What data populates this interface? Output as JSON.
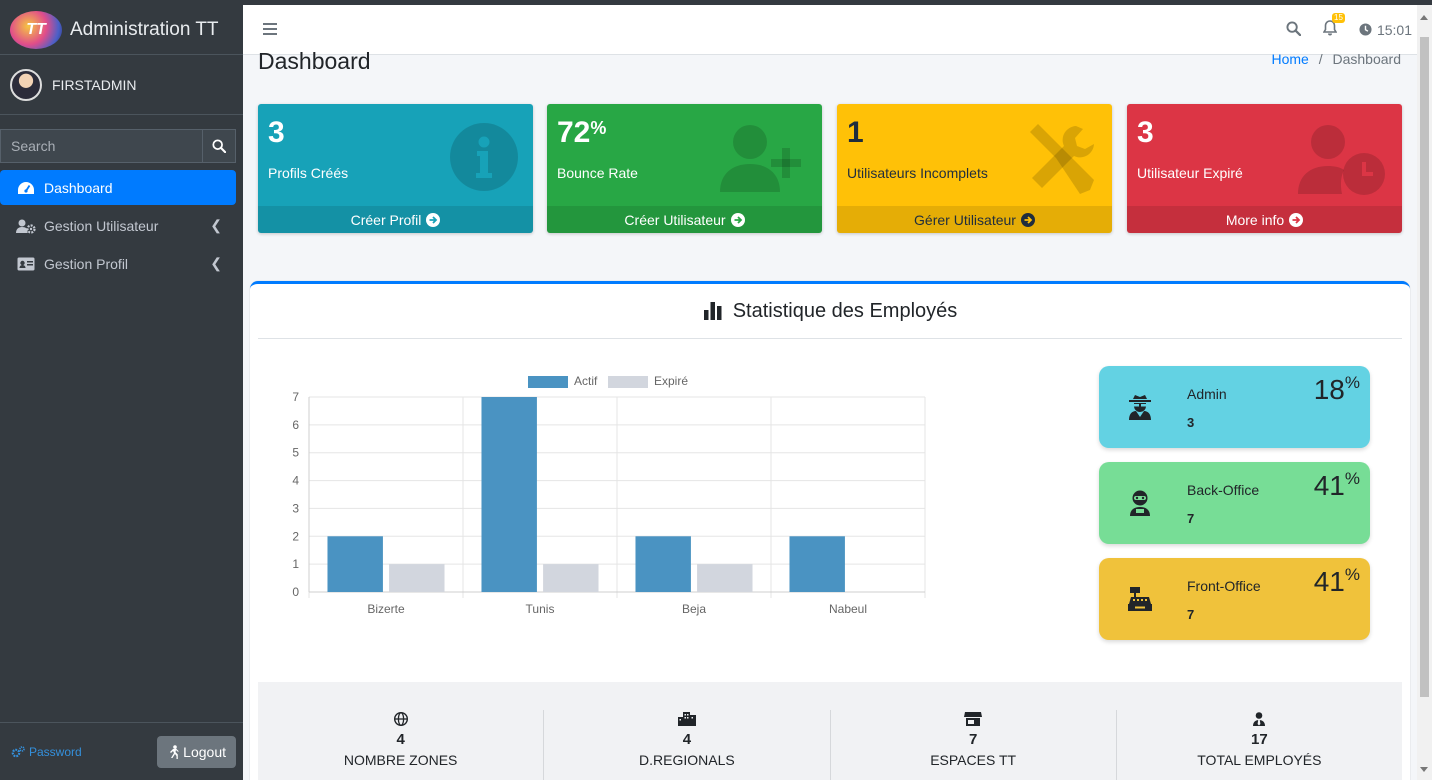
{
  "brand": {
    "logo_text": "TT",
    "title": "Administration TT"
  },
  "user": {
    "name": "FIRSTADMIN"
  },
  "search": {
    "placeholder": "Search"
  },
  "sidebar": {
    "items": [
      {
        "label": "Dashboard",
        "icon": "tachometer-icon",
        "active": true
      },
      {
        "label": "Gestion Utilisateur",
        "icon": "users-cog-icon"
      },
      {
        "label": "Gestion Profil",
        "icon": "id-card-icon"
      }
    ],
    "password_label": "Password",
    "logout_label": "Logout"
  },
  "navbar": {
    "notification_count": "15",
    "time": "15:01"
  },
  "header": {
    "title": "Dashboard",
    "breadcrumb_home": "Home",
    "breadcrumb_sep": "/",
    "breadcrumb_current": "Dashboard"
  },
  "boxes": [
    {
      "value": "3",
      "label": "Profils Créés",
      "link": "Créer Profil",
      "color": "#17a2b8"
    },
    {
      "value": "72",
      "suffix": "%",
      "label": "Bounce Rate",
      "link": "Créer Utilisateur",
      "color": "#28a745"
    },
    {
      "value": "1",
      "label": "Utilisateurs Incomplets",
      "link": "Gérer Utilisateur",
      "color": "#ffc107"
    },
    {
      "value": "3",
      "label": "Utilisateur Expiré",
      "link": "More info",
      "color": "#dc3545"
    }
  ],
  "card": {
    "title": "Statistique des Employés"
  },
  "chart_data": {
    "type": "bar",
    "categories": [
      "Bizerte",
      "Tunis",
      "Beja",
      "Nabeul"
    ],
    "series": [
      {
        "name": "Actif",
        "values": [
          2,
          7,
          2,
          2
        ],
        "color": "#4a93c2"
      },
      {
        "name": "Expiré",
        "values": [
          1,
          1,
          1,
          0
        ],
        "color": "#d2d6de"
      }
    ],
    "ylim": [
      0,
      7
    ],
    "yticks": [
      0,
      1,
      2,
      3,
      4,
      5,
      6,
      7
    ],
    "legend": "top",
    "grid": true
  },
  "stats": [
    {
      "name": "Admin",
      "count": "3",
      "percent": "18",
      "suffix": "%",
      "color": "#63d2e3",
      "icon": "user-secret-icon"
    },
    {
      "name": "Back-Office",
      "count": "7",
      "percent": "41",
      "suffix": "%",
      "color": "#77dd96",
      "icon": "user-ninja-icon"
    },
    {
      "name": "Front-Office",
      "count": "7",
      "percent": "41",
      "suffix": "%",
      "color": "#f0c23b",
      "icon": "cash-register-icon"
    }
  ],
  "footer": [
    {
      "value": "4",
      "label": "NOMBRE ZONES",
      "icon": "globe-icon"
    },
    {
      "value": "4",
      "label": "D.REGIONALS",
      "icon": "city-icon"
    },
    {
      "value": "7",
      "label": "ESPACES TT",
      "icon": "store-icon"
    },
    {
      "value": "17",
      "label": "TOTAL EMPLOYÉS",
      "icon": "user-tie-icon"
    }
  ]
}
